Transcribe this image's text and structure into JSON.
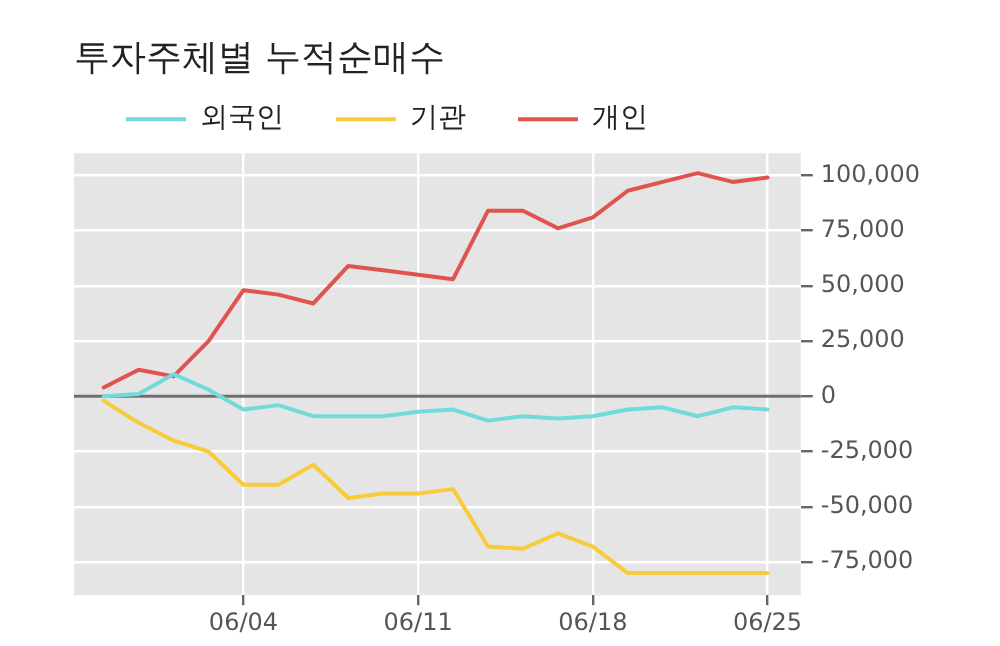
{
  "chart_data": {
    "type": "line",
    "title": "투자주체별 누적순매수",
    "categories": [
      null,
      null,
      null,
      null,
      "06/04",
      null,
      null,
      null,
      null,
      "06/11",
      null,
      null,
      null,
      null,
      "06/18",
      null,
      null,
      null,
      null,
      "06/25"
    ],
    "series": [
      {
        "name": "외국인",
        "color": "#72dbd9",
        "values": [
          0,
          1000,
          10000,
          3000,
          -6000,
          -4000,
          -9000,
          -9000,
          -9000,
          -7000,
          -6000,
          -11000,
          -9000,
          -10000,
          -9000,
          -6000,
          -5000,
          -9000,
          -5000,
          -6000
        ]
      },
      {
        "name": "기관",
        "color": "#f8cb3a",
        "values": [
          -2000,
          -12000,
          -20000,
          -25000,
          -40000,
          -40000,
          -31000,
          -46000,
          -44000,
          -44000,
          -42000,
          -68000,
          -69000,
          -62000,
          -68000,
          -80000,
          -80000,
          -80000,
          -80000,
          -80000
        ]
      },
      {
        "name": "개인",
        "color": "#e0544f",
        "values": [
          4000,
          12000,
          9000,
          25000,
          48000,
          46000,
          42000,
          59000,
          57000,
          55000,
          53000,
          84000,
          84000,
          76000,
          81000,
          93000,
          97000,
          101000,
          97000,
          99000
        ]
      }
    ],
    "ylim": [
      -90000,
      110000
    ],
    "yticks": [
      {
        "value": -75000,
        "label": "-75,000"
      },
      {
        "value": -50000,
        "label": "-50,000"
      },
      {
        "value": -25000,
        "label": "-25,000"
      },
      0,
      {
        "value": 25000,
        "label": "25,000"
      },
      {
        "value": 50000,
        "label": "50,000"
      },
      {
        "value": 75000,
        "label": "75,000"
      },
      {
        "value": 100000,
        "label": "100,000"
      }
    ],
    "ref_lines": [
      {
        "axis": "y",
        "value": 0,
        "color": "#6e6e6e"
      }
    ],
    "grid": true,
    "legend": "top left",
    "marker": "none",
    "line_style": "solid"
  }
}
